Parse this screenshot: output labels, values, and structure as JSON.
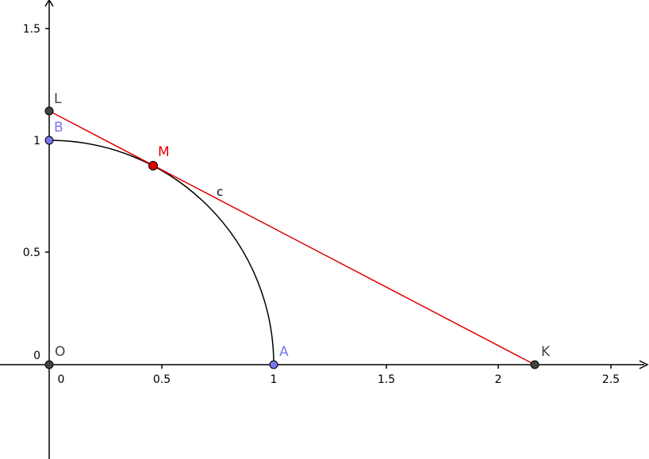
{
  "axes": {
    "x_ticks": [
      "0",
      "0.5",
      "1",
      "1.5",
      "2",
      "2.5"
    ],
    "y_ticks": [
      "0",
      "0.5",
      "1",
      "1.5"
    ]
  },
  "points": [
    {
      "label": "O"
    },
    {
      "label": "A"
    },
    {
      "label": "B"
    },
    {
      "label": "M"
    },
    {
      "label": "L"
    },
    {
      "label": "K"
    }
  ],
  "line_label": "c"
}
